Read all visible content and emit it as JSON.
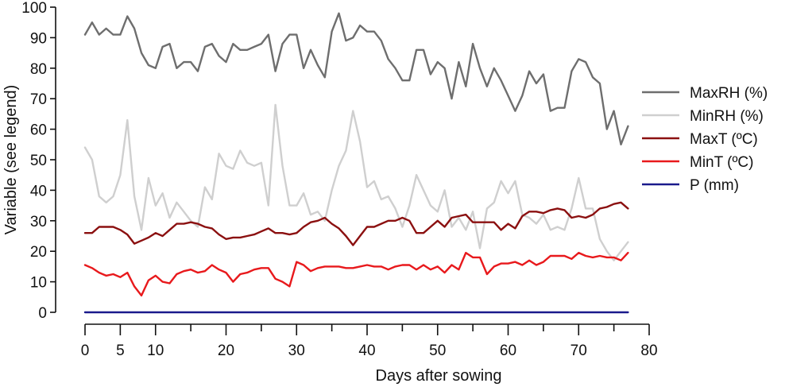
{
  "chart_data": {
    "type": "line",
    "xlabel": "Days after sowing",
    "ylabel": "Variable (see legend)",
    "xlim": [
      -3,
      80
    ],
    "ylim": [
      0,
      100
    ],
    "xticks_major": [
      0,
      10,
      20,
      30,
      40,
      50,
      60,
      70,
      80
    ],
    "xticks_extra": [
      5
    ],
    "xticks_minor": [
      15,
      25,
      35,
      45,
      55,
      65,
      75
    ],
    "yticks": [
      0,
      10,
      20,
      30,
      40,
      50,
      60,
      70,
      80,
      90,
      100
    ],
    "grid": false,
    "legend_position": "right",
    "x": [
      0,
      1,
      2,
      3,
      4,
      5,
      6,
      7,
      8,
      9,
      10,
      11,
      12,
      13,
      14,
      15,
      16,
      17,
      18,
      19,
      20,
      21,
      22,
      23,
      24,
      25,
      26,
      27,
      28,
      29,
      30,
      31,
      32,
      33,
      34,
      35,
      36,
      37,
      38,
      39,
      40,
      41,
      42,
      43,
      44,
      45,
      46,
      47,
      48,
      49,
      50,
      51,
      52,
      53,
      54,
      55,
      56,
      57,
      58,
      59,
      60,
      61,
      62,
      63,
      64,
      65,
      66,
      67,
      68,
      69,
      70,
      71,
      72,
      73,
      74,
      75,
      76,
      77
    ],
    "series": [
      {
        "name": "MaxRH (%)",
        "color": "#6e6e6e",
        "values": [
          91,
          95,
          91,
          93,
          91,
          91,
          97,
          93,
          85,
          81,
          80,
          87,
          88,
          80,
          82,
          82,
          79,
          87,
          88,
          84,
          82,
          88,
          86,
          86,
          87,
          88,
          91,
          79,
          88,
          91,
          91,
          80,
          86,
          81,
          77,
          92,
          98,
          89,
          90,
          94,
          92,
          92,
          89,
          83,
          80,
          76,
          76,
          86,
          86,
          78,
          82,
          80,
          70,
          82,
          74,
          88,
          80,
          74,
          80,
          76,
          71,
          66,
          71,
          79,
          75,
          78,
          66,
          67,
          67,
          79,
          83,
          82,
          77,
          75,
          60,
          66,
          55,
          61
        ]
      },
      {
        "name": "MinRH (%)",
        "color": "#cfcfcf",
        "values": [
          54,
          50,
          38,
          36,
          38,
          45,
          63,
          38,
          27,
          44,
          35,
          39,
          31,
          36,
          33,
          30,
          28,
          41,
          37,
          52,
          48,
          47,
          53,
          49,
          48,
          49,
          35,
          68,
          48,
          35,
          35,
          39,
          32,
          33,
          30,
          40,
          48,
          53,
          66,
          56,
          41,
          43,
          37,
          38,
          34,
          28,
          35,
          45,
          40,
          35,
          33,
          40,
          28,
          31,
          27,
          33,
          21,
          34,
          36,
          43,
          39,
          43,
          32,
          31,
          29,
          32,
          27,
          28,
          27,
          34,
          44,
          34,
          34,
          24,
          20,
          17,
          20,
          23
        ]
      },
      {
        "name": "MaxT (ºC)",
        "color": "#8b1010",
        "values": [
          26,
          26,
          28,
          28,
          28,
          27,
          25.5,
          22.5,
          23.5,
          24.5,
          26,
          25,
          27,
          29,
          29,
          29.5,
          29,
          28,
          27.5,
          25.5,
          24,
          24.5,
          24.5,
          25,
          25.5,
          26.5,
          27.5,
          26,
          26,
          25.5,
          26,
          28,
          29.5,
          30,
          31,
          29,
          27.5,
          25,
          22,
          25,
          28,
          28,
          29,
          30,
          30,
          31,
          30,
          26,
          26,
          28,
          30,
          28,
          31,
          31.5,
          32,
          29.5,
          29.5,
          29.5,
          29.5,
          27,
          29,
          27.5,
          31.5,
          33,
          33,
          32.5,
          33.5,
          34,
          33.5,
          31,
          31.5,
          31,
          32,
          34,
          34.5,
          35.5,
          36,
          34
        ]
      },
      {
        "name": "MinT (ºC)",
        "color": "#e8191c",
        "values": [
          15.5,
          14.5,
          13,
          12,
          12.5,
          11.5,
          13,
          8.5,
          5.5,
          10.5,
          12,
          10,
          9.5,
          12.5,
          13.5,
          14,
          13,
          13.5,
          15.5,
          14,
          13,
          10,
          12.5,
          13,
          14,
          14.5,
          14.5,
          11,
          10,
          8.5,
          16.5,
          15.5,
          13.5,
          14.5,
          15,
          15,
          15,
          14.5,
          14.5,
          15,
          15.5,
          15,
          15,
          14,
          15,
          15.5,
          15.5,
          14,
          15.5,
          14,
          15,
          13,
          15.5,
          14,
          19.5,
          18,
          18,
          12.5,
          15,
          16,
          16,
          16.5,
          15.5,
          17,
          15.5,
          16.5,
          18.5,
          18.5,
          18.5,
          17.5,
          19.5,
          18.5,
          18,
          18.5,
          18,
          18,
          17,
          19.5
        ]
      },
      {
        "name": "P (mm)",
        "color": "#1a1a8c",
        "values": [
          0,
          0,
          0,
          0,
          0,
          0,
          0,
          0,
          0,
          0,
          0,
          0,
          0,
          0,
          0,
          0,
          0,
          0,
          0,
          0,
          0,
          0,
          0,
          0,
          0,
          0,
          0,
          0,
          0,
          0,
          0,
          0,
          0,
          0,
          0,
          0,
          0,
          0,
          0,
          0,
          0,
          0,
          0,
          0,
          0,
          0,
          0,
          0,
          0,
          0,
          0,
          0,
          0,
          0,
          0,
          0,
          0,
          0,
          0,
          0,
          0,
          0,
          0,
          0,
          0,
          0,
          0,
          0,
          0,
          0,
          0,
          0,
          0,
          0,
          0,
          0,
          0,
          0
        ]
      }
    ]
  }
}
